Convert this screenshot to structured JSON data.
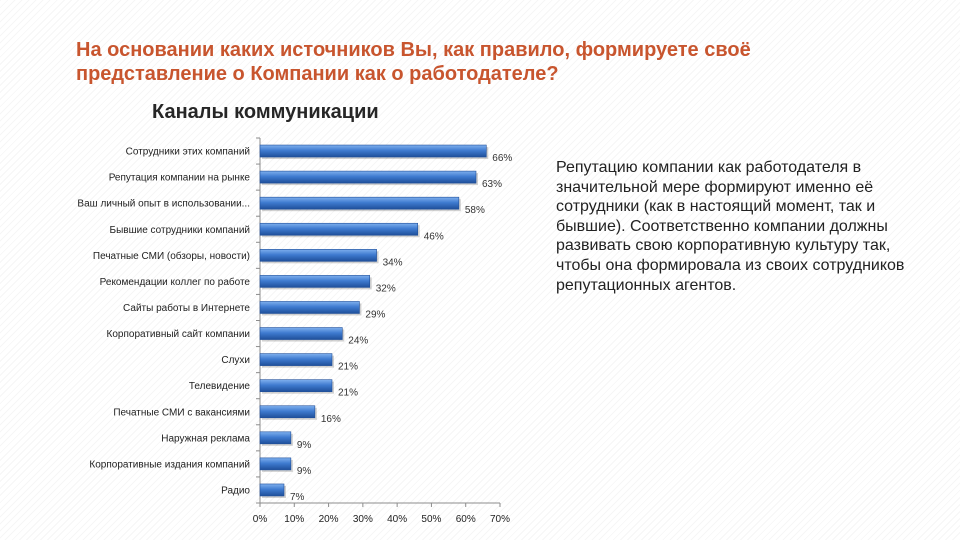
{
  "slide": {
    "title_line1": "На основании каких источников Вы, как правило, формируете своё",
    "title_line2": "представление о Компании как о работодателе?",
    "side_text": "Репутацию компании как работодателя в значительной мере формируют именно её сотрудники (как в настоящий момент, так и бывшие). Соответственно компании должны развивать свою корпоративную культуру так, чтобы она формировала из своих сотрудников репутационных агентов.",
    "colors": {
      "title": "#c8552e",
      "bar": "#3f7bd0",
      "bar_dark": "#1f4f9a"
    }
  },
  "chart_data": {
    "type": "bar",
    "orientation": "horizontal",
    "title": "Каналы коммуникации",
    "categories": [
      "Сотрудники этих компаний",
      "Репутация компании на рынке",
      "Ваш личный опыт в использовании...",
      "Бывшие сотрудники компаний",
      "Печатные СМИ (обзоры, новости)",
      "Рекомендации коллег по работе",
      "Сайты работы в Интернете",
      "Корпоративный сайт компании",
      "Слухи",
      "Телевидение",
      "Печатные СМИ с вакансиями",
      "Наружная реклама",
      "Корпоративные издания компаний",
      "Радио"
    ],
    "values": [
      66,
      63,
      58,
      46,
      34,
      32,
      29,
      24,
      21,
      21,
      16,
      9,
      9,
      7
    ],
    "value_labels": [
      "66%",
      "63%",
      "58%",
      "46%",
      "34%",
      "32%",
      "29%",
      "24%",
      "21%",
      "21%",
      "16%",
      "9%",
      "9%",
      "7%"
    ],
    "xlim": [
      0,
      70
    ],
    "xticks": [
      "0%",
      "10%",
      "20%",
      "30%",
      "40%",
      "50%",
      "60%",
      "70%"
    ],
    "xlabel": "",
    "ylabel": "",
    "grid": false,
    "legend": "none"
  }
}
